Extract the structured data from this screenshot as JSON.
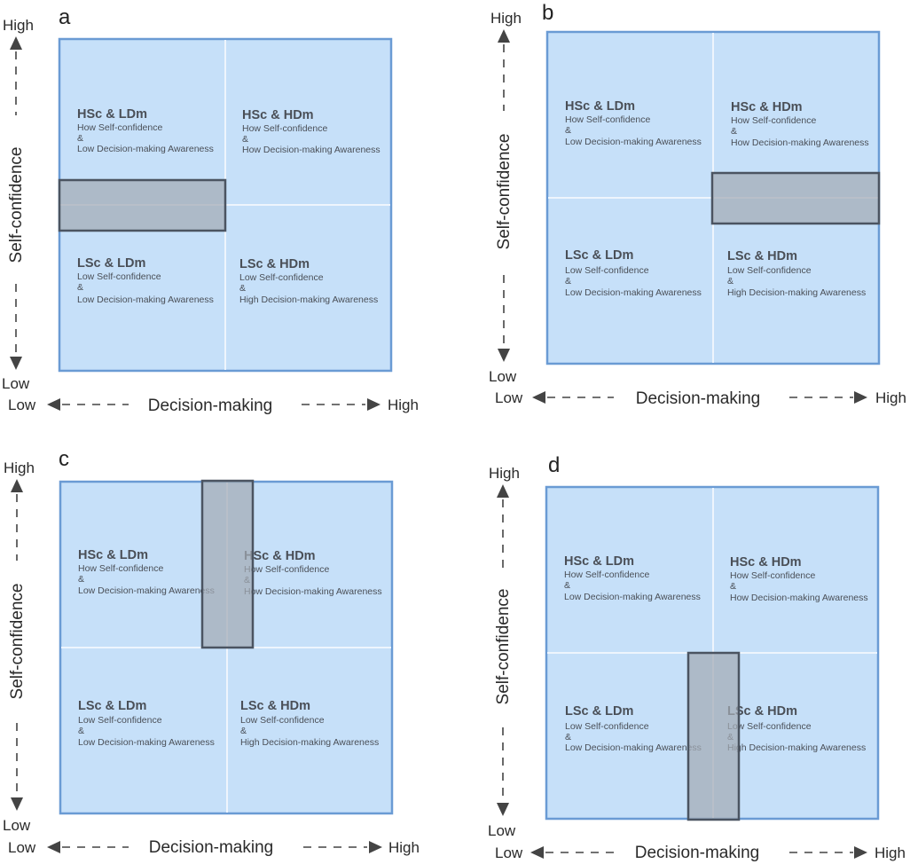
{
  "axes": {
    "y_title": "Self-confidence",
    "x_title": "Decision-making",
    "high": "High",
    "low": "Low"
  },
  "quadrants": {
    "tl": {
      "title": "HSc & LDm",
      "line1": "How Self-confidence",
      "amp": "&",
      "line2": "Low Decision-making Awareness"
    },
    "tr": {
      "title": "HSc & HDm",
      "line1": "How Self-confidence",
      "amp": "&",
      "line2": "How Decision-making Awareness"
    },
    "bl": {
      "title": "LSc & LDm",
      "line1": "Low Self-confidence",
      "amp": "&",
      "line2": "Low Decision-making Awareness"
    },
    "br": {
      "title": "LSc & HDm",
      "line1": "Low Self-confidence",
      "amp": "&",
      "line2": "High Decision-making Awareness"
    }
  },
  "panels": [
    {
      "letter": "a",
      "highlight": "left half of the horizontal midline"
    },
    {
      "letter": "b",
      "highlight": "right half of the horizontal midline"
    },
    {
      "letter": "c",
      "highlight": "top half of the vertical midline"
    },
    {
      "letter": "d",
      "highlight": "bottom half of the vertical midline"
    }
  ],
  "colors": {
    "quadrant_fill": "#c6e0f9",
    "quadrant_border": "#6a9bd4",
    "highlight_fill": "#a3aab4",
    "highlight_border": "#4b5461"
  }
}
